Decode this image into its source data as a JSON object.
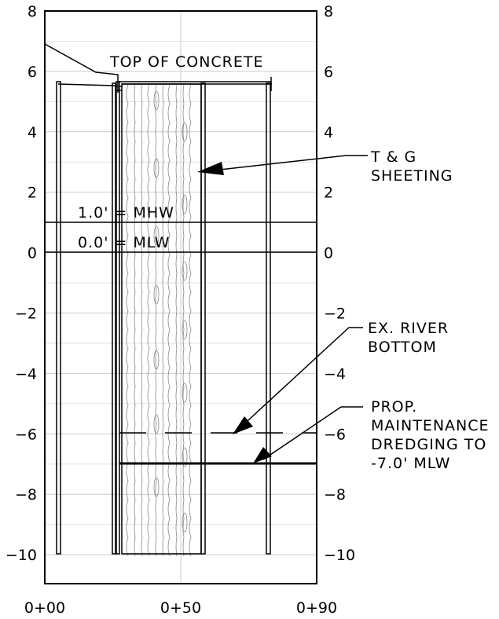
{
  "labels": {
    "top_of_concrete": "TOP OF CONCRETE",
    "tg_line1": "T & G",
    "tg_line2": "SHEETING",
    "mhw": "1.0' = MHW",
    "mlw": "0.0' = MLW",
    "river_line1": "EX. RIVER",
    "river_line2": "BOTTOM",
    "prop_line1": "PROP.",
    "prop_line2": "MAINTENANCE",
    "prop_line3": "DREDGING TO",
    "prop_line4": "-7.0' MLW"
  },
  "axes": {
    "y_ticks": [
      "8",
      "6",
      "4",
      "2",
      "0",
      "-2",
      "-4",
      "-6",
      "-8",
      "-10"
    ],
    "x_ticks": [
      "0+00",
      "0+50",
      "0+90"
    ]
  },
  "elevations": {
    "top_of_concrete": 5.6,
    "mhw": 1.0,
    "mlw": 0.0,
    "existing_river_bottom": -6.0,
    "proposed_dredging": -7.0,
    "pile_tip": -10.0
  },
  "colors": {
    "line": "#000000",
    "grid": "#cccccc",
    "wood": "#888888"
  }
}
